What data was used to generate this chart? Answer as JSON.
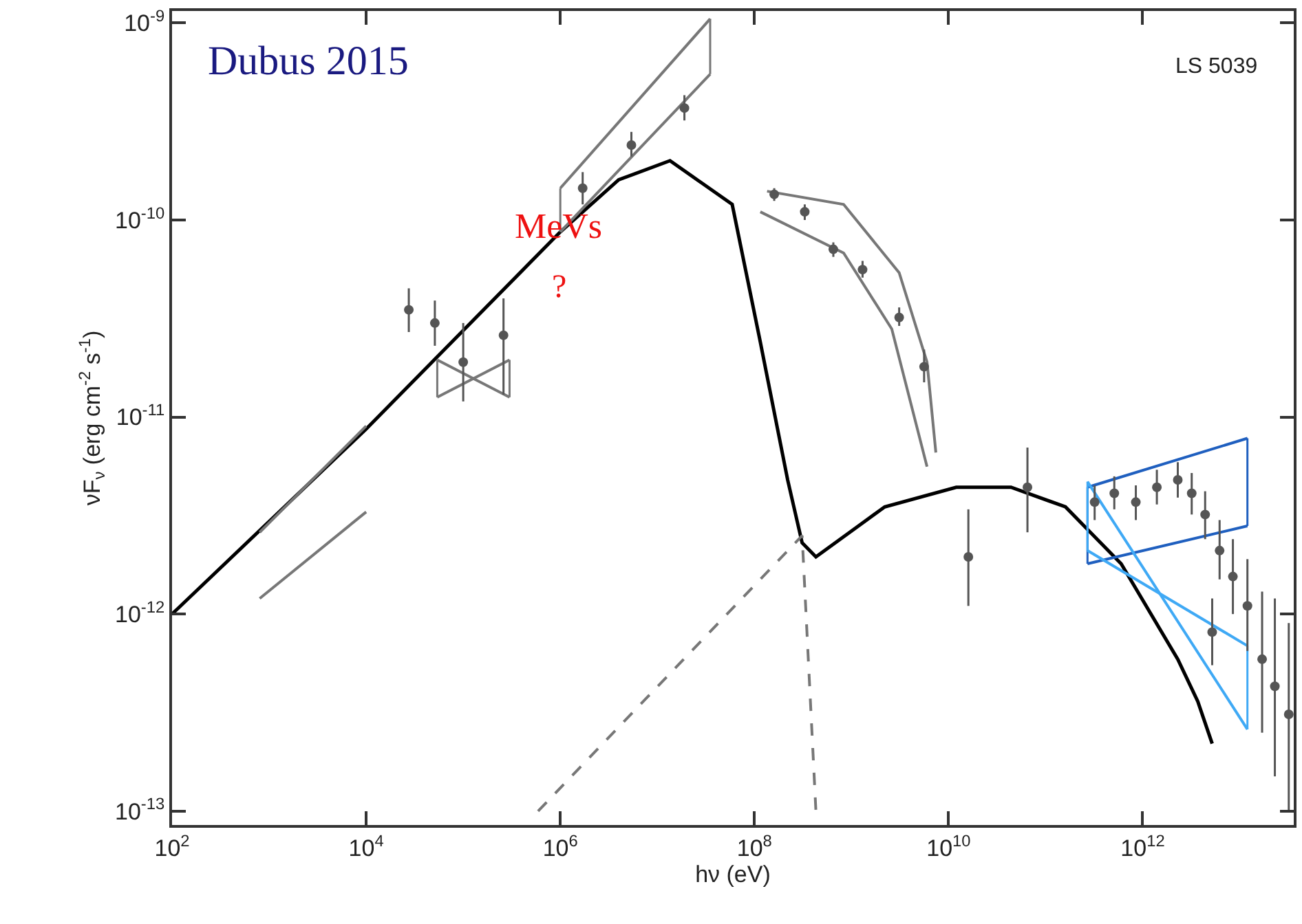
{
  "chart_data": {
    "type": "line",
    "xlabel": "hν (eV)",
    "ylabel": "νF$_{ν}$ (erg cm$^{-2}$ s$^{-1}$)",
    "annotations": [
      "Dubus 2015",
      "LS 5039",
      "MeVs",
      "?"
    ],
    "log": "xy",
    "xlim": [
      100,
      36000000000000.0
    ],
    "ylim": [
      8.5e-14,
      1.15e-09
    ],
    "xticks": [
      {
        "value": 100,
        "label": "10$^{2}$"
      },
      {
        "value": 10000,
        "label": "10$^{4}$"
      },
      {
        "value": 1000000,
        "label": "10$^{6}$"
      },
      {
        "value": 100000000,
        "label": "10$^{8}$"
      },
      {
        "value": 10000000000,
        "label": "10$^{10}$"
      },
      {
        "value": 1000000000000,
        "label": "10$^{12}$"
      }
    ],
    "yticks": [
      {
        "value": 1e-13,
        "label": "10$^{-13}$"
      },
      {
        "value": 1e-12,
        "label": "10$^{-12}$"
      },
      {
        "value": 1e-11,
        "label": "10$^{-11}$"
      },
      {
        "value": 1e-10,
        "label": "10$^{-10}$"
      },
      {
        "value": 1e-09,
        "label": "10$^{-9}$"
      }
    ],
    "series": [
      {
        "color": "#000000",
        "marker": "none",
        "line_style": "solid",
        "x": [
          100,
          10000,
          1000000,
          4000000,
          13500000,
          59000000,
          115000000,
          220000000,
          310000000,
          430000000,
          2200000000,
          12000000000,
          44000000000,
          160000000000,
          600000000000,
          2300000000000,
          3700000000000,
          5200000000000
        ],
        "values": [
          1e-12,
          8.7e-12,
          8.7e-11,
          1.6e-10,
          2e-10,
          1.2e-10,
          2.4e-11,
          4.8e-12,
          2.3e-12,
          1.95e-12,
          3.5e-12,
          4.4e-12,
          4.4e-12,
          3.5e-12,
          1.8e-12,
          5.9e-13,
          3.6e-13,
          2.2e-13
        ]
      },
      {
        "color": "#777777",
        "marker": "none",
        "line_style": "dashed",
        "x": [
          590000,
          310000000,
          430000000
        ],
        "values": [
          1e-13,
          2.5e-12,
          1e-13
        ]
      },
      {
        "color": "#777777",
        "marker": "none",
        "line_style": "solid",
        "x": [
          135000000,
          830000000,
          3100000000,
          6000000000,
          7400000000
        ],
        "values": [
          1.4e-10,
          1.2e-10,
          5.4e-11,
          1.9e-11,
          6.6e-12
        ]
      },
      {
        "color": "#777777",
        "marker": "none",
        "line_style": "solid",
        "x": [
          115000000,
          830000000,
          2600000000,
          6000000000
        ],
        "values": [
          1.1e-10,
          6.8e-11,
          2.8e-11,
          5.6e-12
        ]
      },
      {
        "color": "#777777",
        "marker": "none",
        "line_style": "solid",
        "x": [
          800,
          10000
        ],
        "values": [
          1.2e-12,
          3.3e-12
        ]
      },
      {
        "color": "#777777",
        "marker": "none",
        "line_style": "solid",
        "x": [
          800,
          10000
        ],
        "values": [
          2.6e-12,
          9e-12
        ]
      },
      {
        "color": "#777777",
        "marker": "none",
        "line_style": "solid",
        "x": [
          54000,
          300000
        ],
        "values": [
          1.95e-11,
          1.26e-11
        ],
        "errors": [
          [
            1.26e-11,
            1.95e-11
          ],
          [
            1.26e-11,
            1.95e-11
          ]
        ]
      },
      {
        "color": "#777777",
        "marker": "none",
        "line_style": "solid",
        "x": [
          54000,
          300000
        ],
        "values": [
          1.26e-11,
          1.95e-11
        ]
      },
      {
        "color": "#777777",
        "marker": "none",
        "line_style": "solid",
        "x": [
          1000000,
          35000000
        ],
        "values": [
          8.7e-11,
          5.5e-10
        ],
        "errors": [
          [
            8.7e-11,
            1.45e-10
          ],
          [
            5.5e-10,
            1.05e-09
          ]
        ]
      },
      {
        "color": "#777777",
        "marker": "none",
        "line_style": "solid",
        "x": [
          1000000,
          35000000
        ],
        "values": [
          1.45e-10,
          1.05e-09
        ]
      },
      {
        "color": "#1f5fbf",
        "marker": "none",
        "line_style": "solid",
        "x": [
          270000000000,
          12000000000000
        ],
        "values": [
          4.4e-12,
          7.8e-12
        ],
        "errors": [
          [
            1.8e-12,
            4.4e-12
          ],
          [
            2.8e-12,
            7.8e-12
          ]
        ]
      },
      {
        "color": "#1f5fbf",
        "marker": "none",
        "line_style": "solid",
        "x": [
          270000000000,
          12000000000000
        ],
        "values": [
          1.8e-12,
          2.8e-12
        ]
      },
      {
        "color": "#3fa9f5",
        "marker": "none",
        "line_style": "solid",
        "x": [
          270000000000,
          12000000000000
        ],
        "values": [
          4.7e-12,
          2.6e-13
        ],
        "errors": [
          [
            2.1e-12,
            4.7e-12
          ],
          [
            2.6e-13,
            6.9e-13
          ]
        ]
      },
      {
        "color": "#3fa9f5",
        "marker": "none",
        "line_style": "solid",
        "x": [
          270000000000,
          12000000000000
        ],
        "values": [
          2.1e-12,
          6.9e-13
        ]
      },
      {
        "type": "scatter",
        "color": "#555555",
        "marker": "circle",
        "x": [
          27500,
          51000,
          100000,
          260000,
          1700000,
          5400000,
          19000000,
          160000000,
          330000000,
          650000000,
          1300000000,
          3100000000,
          5600000000,
          16000000000,
          65000000000,
          320000000000,
          510000000000,
          850000000000,
          1400000000000,
          2300000000000,
          3200000000000,
          4400000000000,
          5200000000000,
          6200000000000,
          8500000000000,
          12000000000000,
          17000000000000,
          23000000000000,
          32000000000000
        ],
        "values": [
          3.5e-11,
          3e-11,
          1.9e-11,
          2.6e-11,
          1.45e-10,
          2.4e-10,
          3.7e-10,
          1.35e-10,
          1.1e-10,
          7.1e-11,
          5.6e-11,
          3.2e-11,
          1.8e-11,
          1.95e-12,
          4.4e-12,
          3.7e-12,
          4.1e-12,
          3.7e-12,
          4.4e-12,
          4.8e-12,
          4.1e-12,
          3.2e-12,
          8.1e-13,
          2.1e-12,
          1.55e-12,
          1.1e-12,
          5.9e-13,
          4.3e-13,
          3.1e-13
        ],
        "errors": [
          [
            2.7e-11,
            4.5e-11
          ],
          [
            2.3e-11,
            3.9e-11
          ],
          [
            1.2e-11,
            3e-11
          ],
          [
            1.3e-11,
            4e-11
          ],
          [
            1.2e-10,
            1.75e-10
          ],
          [
            2.1e-10,
            2.8e-10
          ],
          [
            3.2e-10,
            4.3e-10
          ],
          [
            1.25e-10,
            1.45e-10
          ],
          [
            1e-10,
            1.2e-10
          ],
          [
            6.5e-11,
            7.7e-11
          ],
          [
            5.1e-11,
            6.2e-11
          ],
          [
            2.9e-11,
            3.6e-11
          ],
          [
            1.5e-11,
            2.2e-11
          ],
          [
            1.1e-12,
            3.4e-12
          ],
          [
            2.6e-12,
            7e-12
          ],
          [
            3e-12,
            4.5e-12
          ],
          [
            3.4e-12,
            5e-12
          ],
          [
            3e-12,
            4.5e-12
          ],
          [
            3.6e-12,
            5.4e-12
          ],
          [
            3.9e-12,
            5.9e-12
          ],
          [
            3.2e-12,
            5.2e-12
          ],
          [
            2.4e-12,
            4.2e-12
          ],
          [
            5.5e-13,
            1.2e-12
          ],
          [
            1.5e-12,
            3e-12
          ],
          [
            1e-12,
            2.4e-12
          ],
          [
            6.5e-13,
            1.9e-12
          ],
          [
            2.5e-13,
            1.3e-12
          ],
          [
            1.5e-13,
            1.2e-12
          ],
          [
            1e-13,
            9e-13
          ]
        ]
      }
    ]
  }
}
